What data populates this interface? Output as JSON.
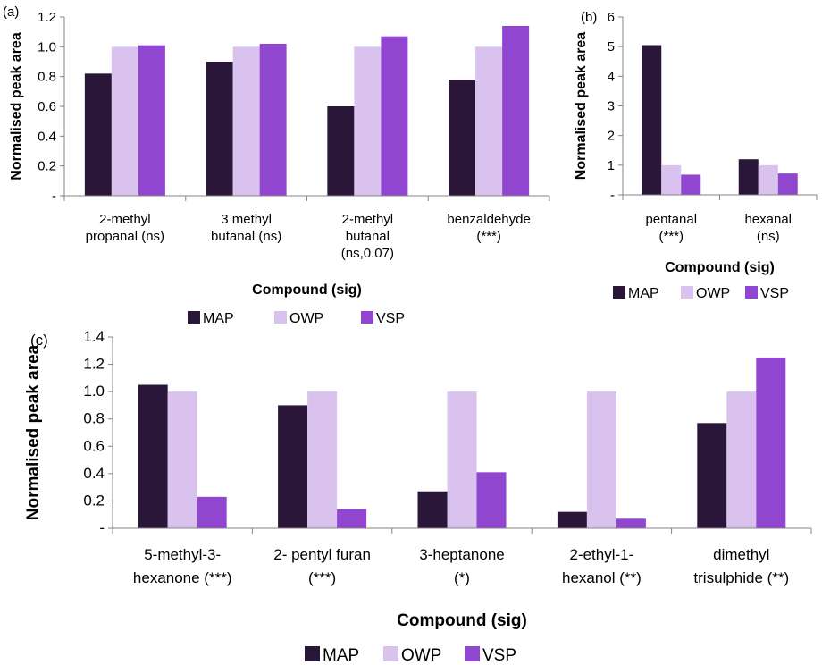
{
  "colors": {
    "MAP": "#2a1639",
    "OWP": "#d9c3ee",
    "VSP": "#9046cf",
    "axis": "#868686"
  },
  "chart_data": [
    {
      "panel": "(a)",
      "type": "bar",
      "xlabel": "Compound (sig)",
      "ylabel": "Normalised peak area",
      "ylim": [
        0,
        1.2
      ],
      "yticks": [
        0,
        0.2,
        0.4,
        0.6,
        0.8,
        1.0,
        1.2
      ],
      "ytick_labels": [
        "-",
        "0.2",
        "0.4",
        "0.6",
        "0.8",
        "1.0",
        "1.2"
      ],
      "categories": [
        [
          "2-methyl",
          "propanal (ns)"
        ],
        [
          "3 methyl",
          "butanal (ns)"
        ],
        [
          "2-methyl",
          "butanal",
          "(ns,0.07)"
        ],
        [
          "benzaldehyde",
          "(***)"
        ]
      ],
      "series": [
        {
          "name": "MAP",
          "values": [
            0.82,
            0.9,
            0.6,
            0.78
          ]
        },
        {
          "name": "OWP",
          "values": [
            1.0,
            1.0,
            1.0,
            1.0
          ]
        },
        {
          "name": "VSP",
          "values": [
            1.01,
            1.02,
            1.07,
            1.14
          ]
        }
      ],
      "legend": "bottom"
    },
    {
      "panel": "(b)",
      "type": "bar",
      "xlabel": "Compound (sig)",
      "ylabel": "Normalised peak area",
      "ylim": [
        0,
        6
      ],
      "yticks": [
        0,
        1,
        2,
        3,
        4,
        5,
        6
      ],
      "ytick_labels": [
        "-",
        "1",
        "2",
        "3",
        "4",
        "5",
        "6"
      ],
      "categories": [
        [
          "pentanal",
          "(***)"
        ],
        [
          "hexanal",
          "(ns)"
        ]
      ],
      "series": [
        {
          "name": "MAP",
          "values": [
            5.05,
            1.2
          ]
        },
        {
          "name": "OWP",
          "values": [
            1.0,
            1.0
          ]
        },
        {
          "name": "VSP",
          "values": [
            0.68,
            0.72
          ]
        }
      ],
      "legend": "bottom"
    },
    {
      "panel": "(c)",
      "type": "bar",
      "xlabel": "Compound (sig)",
      "ylabel": "Normalised peak area",
      "ylim": [
        0,
        1.4
      ],
      "yticks": [
        0,
        0.2,
        0.4,
        0.6,
        0.8,
        1.0,
        1.2,
        1.4
      ],
      "ytick_labels": [
        "-",
        "0.2",
        "0.4",
        "0.6",
        "0.8",
        "1.0",
        "1.2",
        "1.4"
      ],
      "categories": [
        [
          "5-methyl-3-",
          "hexanone (***)"
        ],
        [
          "2- pentyl furan",
          "(***)"
        ],
        [
          "3-heptanone",
          "(*)"
        ],
        [
          "2-ethyl-1-",
          "hexanol (**)"
        ],
        [
          "dimethyl",
          "trisulphide (**)"
        ]
      ],
      "series": [
        {
          "name": "MAP",
          "values": [
            1.05,
            0.9,
            0.27,
            0.12,
            0.77
          ]
        },
        {
          "name": "OWP",
          "values": [
            1.0,
            1.0,
            1.0,
            1.0,
            1.0
          ]
        },
        {
          "name": "VSP",
          "values": [
            0.23,
            0.14,
            0.41,
            0.07,
            1.25
          ]
        }
      ],
      "legend": "bottom"
    }
  ]
}
